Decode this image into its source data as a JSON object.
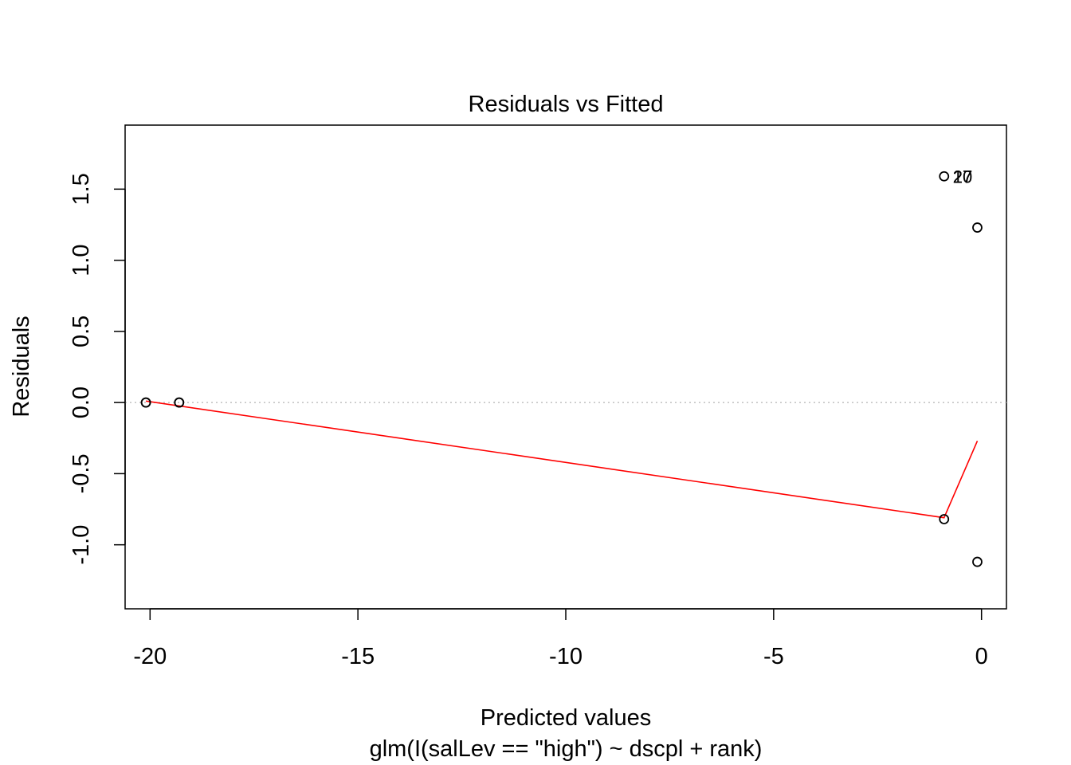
{
  "chart_data": {
    "type": "scatter",
    "title": "Residuals vs Fitted",
    "xlabel": "Predicted values",
    "sub": "glm(I(salLev == \"high\") ~ dscpl + rank)",
    "ylabel": "Residuals",
    "xlim": [
      -20.6,
      0.6
    ],
    "ylim": [
      -1.45,
      1.95
    ],
    "xticks": [
      -20,
      -15,
      -10,
      -5,
      0
    ],
    "xtick_labels": [
      "-20",
      "-15",
      "-10",
      "-5",
      "0"
    ],
    "yticks": [
      -1.0,
      -0.5,
      0.0,
      0.5,
      1.0,
      1.5
    ],
    "ytick_labels": [
      "-1.0",
      "-0.5",
      "0.0",
      "0.5",
      "1.0",
      "1.5"
    ],
    "grid": false,
    "points": [
      {
        "x": -20.1,
        "y": 0.0
      },
      {
        "x": -20.1,
        "y": 0.0
      },
      {
        "x": -19.3,
        "y": 0.0
      },
      {
        "x": -19.3,
        "y": 0.0
      },
      {
        "x": -0.9,
        "y": 1.59
      },
      {
        "x": -0.9,
        "y": -0.82
      },
      {
        "x": -0.1,
        "y": 1.23
      },
      {
        "x": -0.1,
        "y": -1.12
      }
    ],
    "point_labels": [
      {
        "x": -0.9,
        "y": 1.59,
        "text": "27"
      },
      {
        "x": -0.9,
        "y": 1.59,
        "text": "20"
      },
      {
        "x": -0.9,
        "y": 1.59,
        "text": "17"
      }
    ],
    "reference_line": {
      "y": 0.0,
      "style": "dotted",
      "color": "#c0c0c0"
    },
    "smooth_line": {
      "color": "#ff0000",
      "x": [
        -20.1,
        -0.9,
        -0.1
      ],
      "y": [
        0.01,
        -0.81,
        -0.27
      ]
    }
  }
}
